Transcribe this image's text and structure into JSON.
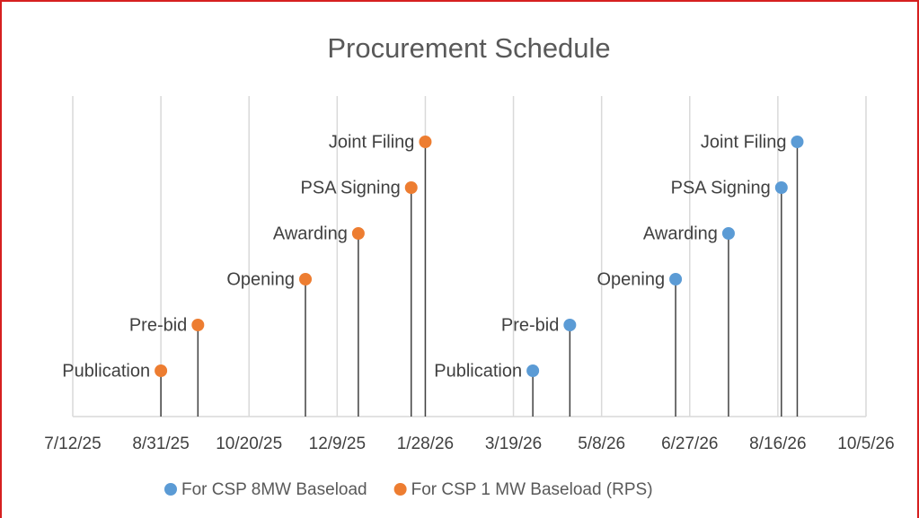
{
  "chart_data": {
    "type": "scatter",
    "title": "Procurement Schedule",
    "xlim": [
      "2025-07-12",
      "2026-10-05"
    ],
    "xticks": [
      {
        "value": "2025-07-12",
        "label": "7/12/25"
      },
      {
        "value": "2025-08-31",
        "label": "8/31/25"
      },
      {
        "value": "2025-10-20",
        "label": "10/20/25"
      },
      {
        "value": "2025-12-09",
        "label": "12/9/25"
      },
      {
        "value": "2026-01-28",
        "label": "1/28/26"
      },
      {
        "value": "2026-03-19",
        "label": "3/19/26"
      },
      {
        "value": "2026-05-08",
        "label": "5/8/26"
      },
      {
        "value": "2026-06-27",
        "label": "6/27/26"
      },
      {
        "value": "2026-08-16",
        "label": "8/16/26"
      },
      {
        "value": "2026-10-05",
        "label": "10/5/26"
      }
    ],
    "ylim": [
      0,
      7
    ],
    "grid": true,
    "legend": "bottom",
    "series": [
      {
        "name": "For CSP 8MW Baseload",
        "color": "#5b9bd5",
        "x": [
          "2026-03-30",
          "2026-04-20",
          "2026-06-19",
          "2026-07-19",
          "2026-08-18",
          "2026-08-27"
        ],
        "values": [
          1,
          2,
          3,
          4,
          5,
          6
        ],
        "labels": [
          "Publication",
          "Pre-bid",
          "Opening",
          "Awarding",
          "PSA Signing",
          "Joint Filing"
        ]
      },
      {
        "name": "For CSP 1 MW Baseload (RPS)",
        "color": "#ed7d31",
        "x": [
          "2025-08-31",
          "2025-09-21",
          "2025-11-21",
          "2025-12-21",
          "2026-01-20",
          "2026-01-28"
        ],
        "values": [
          1,
          2,
          3,
          4,
          5,
          6
        ],
        "labels": [
          "Publication",
          "Pre-bid",
          "Opening",
          "Awarding",
          "PSA Signing",
          "Joint Filing"
        ]
      }
    ]
  }
}
